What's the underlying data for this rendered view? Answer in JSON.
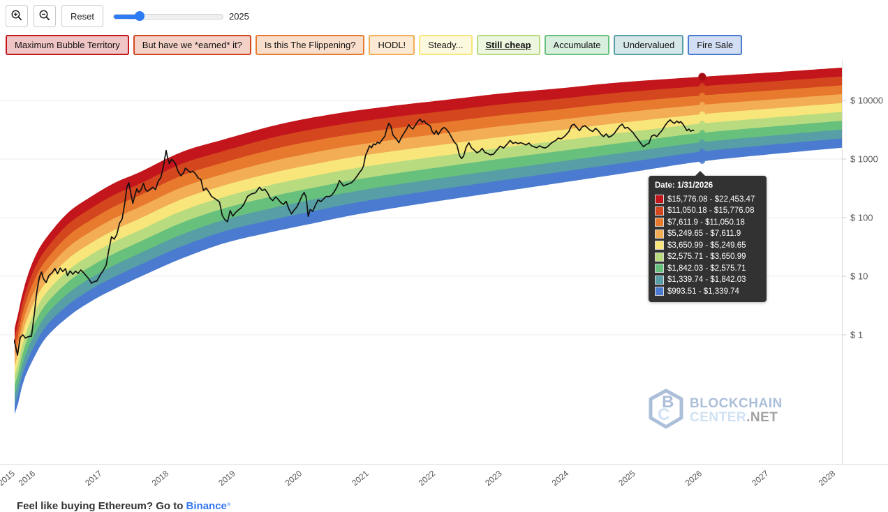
{
  "toolbar": {
    "reset_label": "Reset",
    "slider_value_label": "2025",
    "slider_fill_percent": 24
  },
  "chart_data": {
    "type": "area",
    "title": "",
    "y_axis": {
      "scale": "log",
      "ticks": [
        {
          "label": "$ 10000",
          "value": 10000
        },
        {
          "label": "$ 1000",
          "value": 1000
        },
        {
          "label": "$ 100",
          "value": 100
        },
        {
          "label": "$ 10",
          "value": 10
        },
        {
          "label": "$ 1",
          "value": 1
        }
      ]
    },
    "x_axis": {
      "ticks": [
        "2015",
        "2016",
        "2017",
        "2018",
        "2019",
        "2020",
        "2021",
        "2022",
        "2023",
        "2024",
        "2025",
        "2026",
        "2027",
        "2028"
      ]
    },
    "bands": [
      {
        "label": "Maximum Bubble Territory",
        "color": "#c3161c",
        "tooltip_range": "$15,776.08 - $22,453.47",
        "active": false
      },
      {
        "label": "But have we *earned* it?",
        "color": "#d4461e",
        "tooltip_range": "$11,050.18 - $15,776.08",
        "active": false
      },
      {
        "label": "Is this The Flippening?",
        "color": "#e87a2e",
        "tooltip_range": "$7,611.9 - $11,050.18",
        "active": false
      },
      {
        "label": "HODL!",
        "color": "#f2ad55",
        "tooltip_range": "$5,249.65 - $7,611.9",
        "active": false
      },
      {
        "label": "Steady...",
        "color": "#f8e67b",
        "tooltip_range": "$3,650.99 - $5,249.65",
        "active": false
      },
      {
        "label": "Still cheap",
        "color": "#b9db80",
        "tooltip_range": "$2,575.71 - $3,650.99",
        "active": true
      },
      {
        "label": "Accumulate",
        "color": "#67c07c",
        "tooltip_range": "$1,842.03 - $2,575.71",
        "active": false
      },
      {
        "label": "Undervalued",
        "color": "#579ea6",
        "tooltip_range": "$1,339.74 - $1,842.03",
        "active": false
      },
      {
        "label": "Fire Sale",
        "color": "#4a7bd0",
        "tooltip_range": "$993.51 - $1,339.74",
        "active": false
      }
    ],
    "tooltip": {
      "title": "Date: 1/31/2026",
      "year": 2026.08,
      "boundary_values": [
        22453.47,
        15776.08,
        11050.18,
        7611.9,
        5249.65,
        3650.99,
        2575.71,
        1842.03,
        1339.74,
        993.51
      ]
    },
    "band_top_curve": [
      [
        2015.78,
        1.3
      ],
      [
        2015.86,
        3.9
      ],
      [
        2015.97,
        11
      ],
      [
        2016.12,
        28
      ],
      [
        2016.33,
        61
      ],
      [
        2016.59,
        128
      ],
      [
        2016.91,
        227
      ],
      [
        2017.27,
        394
      ],
      [
        2017.64,
        595
      ],
      [
        2018.27,
        1315
      ],
      [
        2018.9,
        2154
      ],
      [
        2019.74,
        3924
      ],
      [
        2020.57,
        5925
      ],
      [
        2021.41,
        8013
      ],
      [
        2022.25,
        10280
      ],
      [
        2023.08,
        13183
      ],
      [
        2023.92,
        16032
      ],
      [
        2024.76,
        19953
      ],
      [
        2025.6,
        23399
      ],
      [
        2026.43,
        26915
      ],
      [
        2027.27,
        30903
      ],
      [
        2028.17,
        36308
      ]
    ],
    "band_bottom_curve": [
      [
        2015.79,
        0.045
      ],
      [
        2015.89,
        0.155
      ],
      [
        2016.07,
        0.44
      ],
      [
        2016.25,
        0.95
      ],
      [
        2016.59,
        2.15
      ],
      [
        2016.94,
        3.94
      ],
      [
        2017.3,
        6.45
      ],
      [
        2017.75,
        11.2
      ],
      [
        2018.27,
        20.3
      ],
      [
        2018.92,
        37.4
      ],
      [
        2019.63,
        58
      ],
      [
        2020.17,
        78
      ],
      [
        2020.89,
        115
      ],
      [
        2021.83,
        173
      ],
      [
        2022.87,
        261
      ],
      [
        2023.92,
        394
      ],
      [
        2024.97,
        595
      ],
      [
        2026.05,
        919
      ],
      [
        2027.06,
        1212
      ],
      [
        2028.17,
        1585
      ]
    ],
    "price_color": "#111111",
    "price_series": [
      [
        2015.62,
        0.9
      ],
      [
        2015.66,
        1.25
      ],
      [
        2015.7,
        0.8
      ],
      [
        2015.74,
        0.95
      ],
      [
        2015.78,
        0.65
      ],
      [
        2015.81,
        0.45
      ],
      [
        2015.85,
        0.9
      ],
      [
        2015.89,
        1.0
      ],
      [
        2015.93,
        0.88
      ],
      [
        2015.97,
        0.93
      ],
      [
        2016.02,
        0.95
      ],
      [
        2016.06,
        2.2
      ],
      [
        2016.1,
        5.5
      ],
      [
        2016.14,
        9.8
      ],
      [
        2016.17,
        11.8
      ],
      [
        2016.2,
        9.0
      ],
      [
        2016.24,
        7.8
      ],
      [
        2016.28,
        10.3
      ],
      [
        2016.33,
        11.5
      ],
      [
        2016.37,
        13.6
      ],
      [
        2016.41,
        11.0
      ],
      [
        2016.45,
        13.8
      ],
      [
        2016.49,
        12.0
      ],
      [
        2016.53,
        13.5
      ],
      [
        2016.56,
        10.2
      ],
      [
        2016.6,
        12.3
      ],
      [
        2016.64,
        10.8
      ],
      [
        2016.68,
        12.2
      ],
      [
        2016.72,
        11.2
      ],
      [
        2016.76,
        12.8
      ],
      [
        2016.8,
        11.5
      ],
      [
        2016.84,
        10.2
      ],
      [
        2016.88,
        9.0
      ],
      [
        2016.92,
        7.6
      ],
      [
        2016.96,
        8.1
      ],
      [
        2017.0,
        8.3
      ],
      [
        2017.05,
        10.5
      ],
      [
        2017.1,
        12.8
      ],
      [
        2017.14,
        15.5
      ],
      [
        2017.18,
        28
      ],
      [
        2017.22,
        47
      ],
      [
        2017.26,
        43
      ],
      [
        2017.3,
        52
      ],
      [
        2017.34,
        80
      ],
      [
        2017.38,
        95
      ],
      [
        2017.42,
        180
      ],
      [
        2017.45,
        330
      ],
      [
        2017.48,
        395
      ],
      [
        2017.51,
        260
      ],
      [
        2017.54,
        175
      ],
      [
        2017.57,
        240
      ],
      [
        2017.6,
        310
      ],
      [
        2017.63,
        270
      ],
      [
        2017.66,
        295
      ],
      [
        2017.7,
        385
      ],
      [
        2017.73,
        300
      ],
      [
        2017.76,
        280
      ],
      [
        2017.8,
        305
      ],
      [
        2017.84,
        330
      ],
      [
        2017.88,
        300
      ],
      [
        2017.92,
        420
      ],
      [
        2017.96,
        480
      ],
      [
        2018.0,
        770
      ],
      [
        2018.04,
        1400
      ],
      [
        2018.06,
        1050
      ],
      [
        2018.09,
        830
      ],
      [
        2018.12,
        990
      ],
      [
        2018.15,
        920
      ],
      [
        2018.18,
        830
      ],
      [
        2018.22,
        610
      ],
      [
        2018.26,
        520
      ],
      [
        2018.3,
        585
      ],
      [
        2018.33,
        700
      ],
      [
        2018.36,
        650
      ],
      [
        2018.4,
        590
      ],
      [
        2018.44,
        620
      ],
      [
        2018.48,
        560
      ],
      [
        2018.52,
        475
      ],
      [
        2018.56,
        450
      ],
      [
        2018.6,
        290
      ],
      [
        2018.64,
        320
      ],
      [
        2018.68,
        275
      ],
      [
        2018.72,
        230
      ],
      [
        2018.76,
        215
      ],
      [
        2018.8,
        200
      ],
      [
        2018.84,
        185
      ],
      [
        2018.88,
        110
      ],
      [
        2018.92,
        92
      ],
      [
        2018.96,
        85
      ],
      [
        2019.0,
        132
      ],
      [
        2019.04,
        106
      ],
      [
        2019.08,
        122
      ],
      [
        2019.12,
        134
      ],
      [
        2019.16,
        145
      ],
      [
        2019.2,
        165
      ],
      [
        2019.26,
        230
      ],
      [
        2019.32,
        255
      ],
      [
        2019.38,
        265
      ],
      [
        2019.44,
        330
      ],
      [
        2019.48,
        290
      ],
      [
        2019.52,
        305
      ],
      [
        2019.56,
        265
      ],
      [
        2019.6,
        215
      ],
      [
        2019.64,
        195
      ],
      [
        2019.68,
        225
      ],
      [
        2019.72,
        205
      ],
      [
        2019.76,
        180
      ],
      [
        2019.8,
        168
      ],
      [
        2019.84,
        190
      ],
      [
        2019.88,
        140
      ],
      [
        2019.92,
        116
      ],
      [
        2019.96,
        135
      ],
      [
        2020.0,
        152
      ],
      [
        2020.04,
        188
      ],
      [
        2020.08,
        240
      ],
      [
        2020.11,
        268
      ],
      [
        2020.14,
        222
      ],
      [
        2020.17,
        105
      ],
      [
        2020.2,
        138
      ],
      [
        2020.24,
        128
      ],
      [
        2020.28,
        165
      ],
      [
        2020.32,
        200
      ],
      [
        2020.36,
        188
      ],
      [
        2020.4,
        208
      ],
      [
        2020.44,
        230
      ],
      [
        2020.48,
        228
      ],
      [
        2020.52,
        240
      ],
      [
        2020.56,
        275
      ],
      [
        2020.6,
        330
      ],
      [
        2020.64,
        430
      ],
      [
        2020.67,
        385
      ],
      [
        2020.7,
        345
      ],
      [
        2020.74,
        365
      ],
      [
        2020.78,
        378
      ],
      [
        2020.82,
        395
      ],
      [
        2020.86,
        440
      ],
      [
        2020.9,
        505
      ],
      [
        2020.94,
        590
      ],
      [
        2020.97,
        650
      ],
      [
        2021.0,
        760
      ],
      [
        2021.03,
        1150
      ],
      [
        2021.06,
        1380
      ],
      [
        2021.09,
        1680
      ],
      [
        2021.12,
        1560
      ],
      [
        2021.15,
        1820
      ],
      [
        2021.18,
        1750
      ],
      [
        2021.21,
        1950
      ],
      [
        2021.24,
        1850
      ],
      [
        2021.28,
        2150
      ],
      [
        2021.32,
        2450
      ],
      [
        2021.35,
        3300
      ],
      [
        2021.38,
        4080
      ],
      [
        2021.41,
        3650
      ],
      [
        2021.44,
        2600
      ],
      [
        2021.47,
        2350
      ],
      [
        2021.5,
        2150
      ],
      [
        2021.53,
        1900
      ],
      [
        2021.56,
        2250
      ],
      [
        2021.6,
        2700
      ],
      [
        2021.64,
        3150
      ],
      [
        2021.68,
        3850
      ],
      [
        2021.71,
        3450
      ],
      [
        2021.74,
        3250
      ],
      [
        2021.78,
        3800
      ],
      [
        2021.81,
        4350
      ],
      [
        2021.85,
        4800
      ],
      [
        2021.88,
        4250
      ],
      [
        2021.91,
        4500
      ],
      [
        2021.94,
        4050
      ],
      [
        2021.97,
        3850
      ],
      [
        2022.0,
        3700
      ],
      [
        2022.03,
        2950
      ],
      [
        2022.06,
        2650
      ],
      [
        2022.09,
        3050
      ],
      [
        2022.12,
        2600
      ],
      [
        2022.15,
        2950
      ],
      [
        2022.18,
        3300
      ],
      [
        2022.21,
        3450
      ],
      [
        2022.24,
        3250
      ],
      [
        2022.28,
        2850
      ],
      [
        2022.32,
        2350
      ],
      [
        2022.36,
        1950
      ],
      [
        2022.4,
        1750
      ],
      [
        2022.44,
        1150
      ],
      [
        2022.47,
        1020
      ],
      [
        2022.5,
        1120
      ],
      [
        2022.54,
        1600
      ],
      [
        2022.58,
        1900
      ],
      [
        2022.62,
        1550
      ],
      [
        2022.66,
        1420
      ],
      [
        2022.7,
        1280
      ],
      [
        2022.74,
        1350
      ],
      [
        2022.78,
        1520
      ],
      [
        2022.82,
        1300
      ],
      [
        2022.86,
        1250
      ],
      [
        2022.9,
        1180
      ],
      [
        2022.95,
        1210
      ],
      [
        2023.0,
        1420
      ],
      [
        2023.05,
        1660
      ],
      [
        2023.1,
        1540
      ],
      [
        2023.15,
        1780
      ],
      [
        2023.2,
        2080
      ],
      [
        2023.24,
        1850
      ],
      [
        2023.28,
        1920
      ],
      [
        2023.32,
        1840
      ],
      [
        2023.36,
        1900
      ],
      [
        2023.4,
        1820
      ],
      [
        2023.44,
        1740
      ],
      [
        2023.48,
        1880
      ],
      [
        2023.52,
        1680
      ],
      [
        2023.56,
        1620
      ],
      [
        2023.6,
        1560
      ],
      [
        2023.64,
        1680
      ],
      [
        2023.68,
        1590
      ],
      [
        2023.72,
        1540
      ],
      [
        2023.76,
        1620
      ],
      [
        2023.8,
        1800
      ],
      [
        2023.84,
        1950
      ],
      [
        2023.88,
        2060
      ],
      [
        2023.92,
        2280
      ],
      [
        2023.96,
        2200
      ],
      [
        2024.0,
        2350
      ],
      [
        2024.04,
        2600
      ],
      [
        2024.08,
        2950
      ],
      [
        2024.12,
        3750
      ],
      [
        2024.16,
        3920
      ],
      [
        2024.2,
        3450
      ],
      [
        2024.24,
        3050
      ],
      [
        2024.28,
        3550
      ],
      [
        2024.32,
        3720
      ],
      [
        2024.36,
        3400
      ],
      [
        2024.4,
        3100
      ],
      [
        2024.44,
        2950
      ],
      [
        2024.48,
        3350
      ],
      [
        2024.52,
        3050
      ],
      [
        2024.56,
        2650
      ],
      [
        2024.6,
        2420
      ],
      [
        2024.64,
        2680
      ],
      [
        2024.68,
        2350
      ],
      [
        2024.72,
        2480
      ],
      [
        2024.76,
        2720
      ],
      [
        2024.8,
        3150
      ],
      [
        2024.84,
        3650
      ],
      [
        2024.88,
        3950
      ],
      [
        2024.92,
        3350
      ],
      [
        2024.96,
        3480
      ],
      [
        2025.0,
        3150
      ],
      [
        2025.04,
        2850
      ],
      [
        2025.08,
        2450
      ],
      [
        2025.12,
        2150
      ],
      [
        2025.16,
        1850
      ],
      [
        2025.2,
        1620
      ],
      [
        2025.24,
        1780
      ],
      [
        2025.28,
        1850
      ],
      [
        2025.32,
        2450
      ],
      [
        2025.36,
        2580
      ],
      [
        2025.4,
        2420
      ],
      [
        2025.44,
        2750
      ],
      [
        2025.48,
        3100
      ],
      [
        2025.52,
        3700
      ],
      [
        2025.56,
        4250
      ],
      [
        2025.6,
        4650
      ],
      [
        2025.63,
        4300
      ],
      [
        2025.66,
        4050
      ],
      [
        2025.7,
        4450
      ],
      [
        2025.73,
        4150
      ],
      [
        2025.76,
        4350
      ],
      [
        2025.79,
        3950
      ],
      [
        2025.82,
        3500
      ],
      [
        2025.85,
        3050
      ],
      [
        2025.88,
        3250
      ],
      [
        2025.91,
        2980
      ],
      [
        2025.94,
        3120
      ],
      [
        2025.96,
        3060
      ]
    ]
  },
  "watermark": {
    "line1": "BLOCKCHAIN",
    "line2": "CENTER",
    "line2_suffix": ".NET"
  },
  "footer": {
    "text_before": "Feel like buying Ethereum? Go to ",
    "link": "Binance",
    "suffix": "*"
  }
}
